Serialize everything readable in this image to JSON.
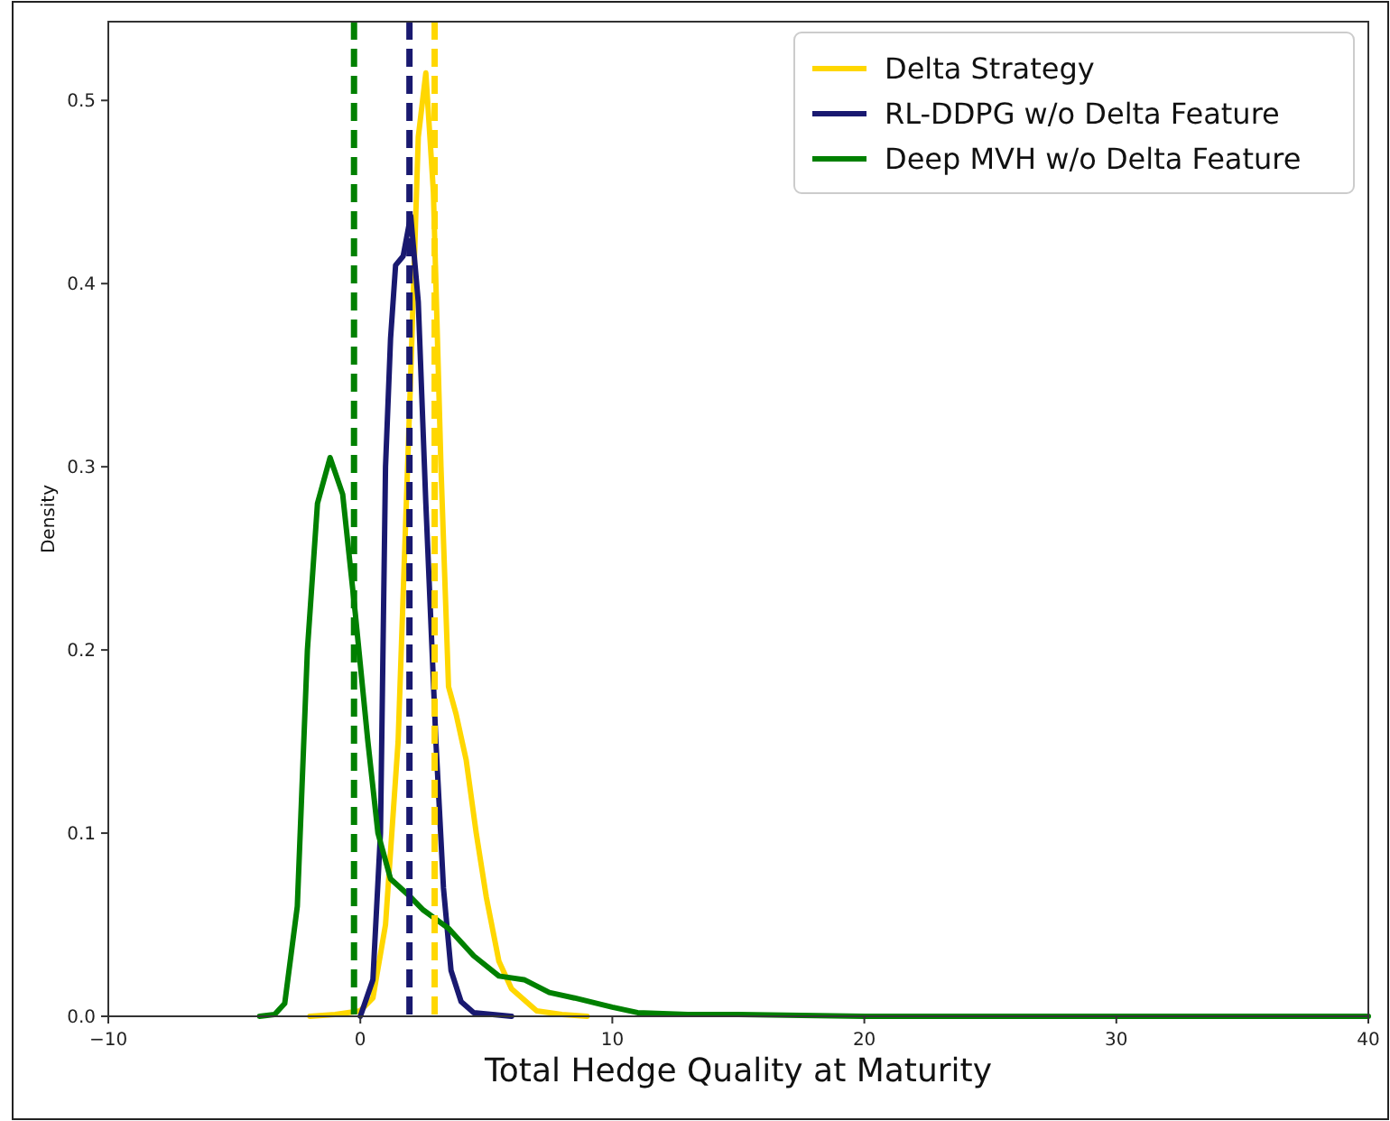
{
  "chart_data": {
    "type": "line",
    "xlabel": "Total Hedge Quality at Maturity",
    "ylabel": "Density",
    "xlim": [
      -10,
      40
    ],
    "xticks": [
      {
        "value": -10,
        "label": "−10"
      },
      0,
      10,
      20,
      30,
      40
    ],
    "ylim": [
      0,
      0.543
    ],
    "yticks": [
      {
        "value": 0,
        "label": "0.0"
      },
      0.1,
      0.2,
      0.3,
      0.4,
      0.5
    ],
    "legend": "top right",
    "grid": false,
    "line_style": "solid",
    "series": [
      {
        "name": "Delta Strategy",
        "color": "#ffd700",
        "x": [
          -2,
          -1,
          0,
          0.5,
          1,
          1.5,
          2,
          2.3,
          2.6,
          2.9,
          3.2,
          3.5,
          3.8,
          4.2,
          4.6,
          5,
          5.5,
          6,
          7,
          8,
          9
        ],
        "values": [
          0,
          0.001,
          0.003,
          0.01,
          0.05,
          0.15,
          0.35,
          0.48,
          0.515,
          0.45,
          0.3,
          0.18,
          0.165,
          0.14,
          0.1,
          0.065,
          0.03,
          0.015,
          0.003,
          0.001,
          0
        ]
      },
      {
        "name": "RL-DDPG w/o Delta Feature",
        "color": "#191970",
        "x": [
          0,
          0.5,
          0.8,
          1,
          1.2,
          1.4,
          1.7,
          2,
          2.3,
          2.6,
          3,
          3.3,
          3.6,
          4,
          4.5,
          6
        ],
        "values": [
          0,
          0.02,
          0.1,
          0.3,
          0.37,
          0.41,
          0.415,
          0.437,
          0.39,
          0.28,
          0.15,
          0.07,
          0.025,
          0.008,
          0.002,
          0
        ]
      },
      {
        "name": "Deep MVH w/o Delta Feature",
        "color": "#008000",
        "x": [
          -4,
          -3.4,
          -3,
          -2.5,
          -2.1,
          -1.7,
          -1.2,
          -0.7,
          -0.2,
          0.3,
          0.7,
          1.2,
          2,
          2.5,
          3.5,
          4.5,
          5.5,
          6.5,
          7.5,
          8.5,
          10,
          11,
          13,
          15,
          20,
          40
        ],
        "values": [
          0,
          0.001,
          0.007,
          0.06,
          0.2,
          0.28,
          0.305,
          0.285,
          0.22,
          0.15,
          0.1,
          0.075,
          0.065,
          0.058,
          0.048,
          0.033,
          0.022,
          0.02,
          0.013,
          0.01,
          0.005,
          0.002,
          0.001,
          0.001,
          0,
          0
        ]
      }
    ],
    "ref_lines": [
      {
        "axis": "x",
        "value": -0.25,
        "color": "#008000",
        "line_style": "dashed"
      },
      {
        "axis": "x",
        "value": 1.95,
        "color": "#191970",
        "line_style": "dashed"
      },
      {
        "axis": "x",
        "value": 2.95,
        "color": "#ffd700",
        "line_style": "dashed"
      }
    ]
  }
}
